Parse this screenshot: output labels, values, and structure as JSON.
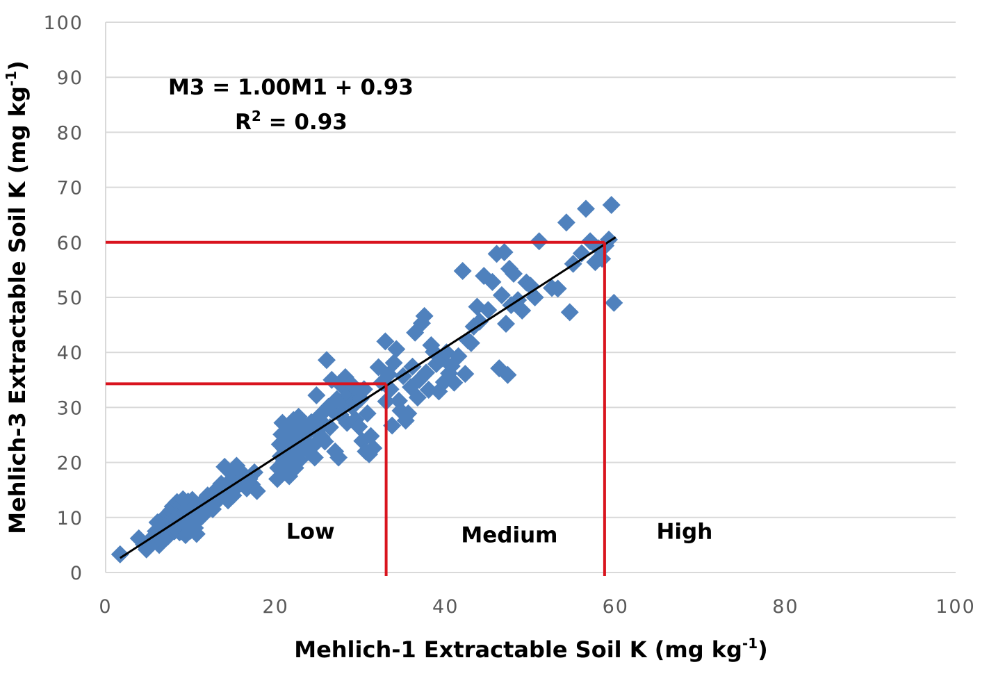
{
  "chart_data": {
    "type": "scatter",
    "xlabel": "Mehlich-1 Extractable Soil K (mg kg",
    "xlabel_sup": "-1",
    "xlabel_end": ")",
    "ylabel": "Mehlich-3 Extractable Soil K (mg kg",
    "ylabel_sup": "-1",
    "ylabel_end": ")",
    "xlim": [
      0,
      100
    ],
    "ylim": [
      0,
      100
    ],
    "xticks": [
      0,
      20,
      40,
      60,
      80,
      100
    ],
    "yticks": [
      0,
      10,
      20,
      30,
      40,
      50,
      60,
      70,
      80,
      90,
      100
    ],
    "grid": "horizontal",
    "marker": "diamond",
    "marker_color": "#4F81BD",
    "trendline": {
      "slope": 1.0,
      "intercept": 0.93,
      "x_range": [
        1.7,
        60
      ],
      "color": "#000000"
    },
    "equation_line1": "M3 = 1.00M1 + 0.93",
    "equation_line2_base": "R",
    "equation_line2_sup": "2",
    "equation_line2_rest": " = 0.93",
    "thresholds": {
      "color": "#D9141E",
      "low": {
        "x": 33,
        "y": 34.3
      },
      "high": {
        "x": 58.7,
        "y": 60
      }
    },
    "regions": [
      {
        "label": "Low",
        "x": 24.1,
        "y": 7.5
      },
      {
        "label": "Medium",
        "x": 47.5,
        "y": 6.9
      },
      {
        "label": "High",
        "x": 68.1,
        "y": 7.5
      }
    ],
    "points": [
      [
        1.7,
        3.3
      ],
      [
        3.9,
        6.2
      ],
      [
        4.5,
        5.1
      ],
      [
        4.8,
        4.2
      ],
      [
        5.0,
        4.7
      ],
      [
        5.4,
        5.5
      ],
      [
        5.6,
        6.5
      ],
      [
        5.9,
        7.5
      ],
      [
        6.1,
        9.1
      ],
      [
        6.3,
        5.0
      ],
      [
        6.5,
        6.0
      ],
      [
        6.6,
        8.0
      ],
      [
        6.8,
        9.5
      ],
      [
        6.9,
        10.0
      ],
      [
        7.0,
        7.2
      ],
      [
        7.2,
        8.7
      ],
      [
        7.3,
        6.5
      ],
      [
        7.4,
        10.5
      ],
      [
        7.5,
        9.3
      ],
      [
        7.7,
        11.3
      ],
      [
        7.8,
        8.2
      ],
      [
        7.9,
        12.0
      ],
      [
        8.0,
        10.8
      ],
      [
        8.1,
        7.5
      ],
      [
        8.2,
        9.8
      ],
      [
        8.3,
        11.8
      ],
      [
        8.4,
        12.8
      ],
      [
        8.5,
        8.8
      ],
      [
        8.6,
        10.4
      ],
      [
        8.7,
        7.3
      ],
      [
        8.8,
        11.1
      ],
      [
        8.9,
        9.6
      ],
      [
        9.0,
        12.5
      ],
      [
        9.1,
        13.3
      ],
      [
        9.2,
        8.0
      ],
      [
        9.3,
        10.9
      ],
      [
        9.4,
        6.8
      ],
      [
        9.5,
        9.3
      ],
      [
        9.6,
        11.6
      ],
      [
        9.7,
        12.9
      ],
      [
        9.8,
        8.5
      ],
      [
        9.9,
        10.1
      ],
      [
        10.0,
        7.6
      ],
      [
        10.1,
        11.9
      ],
      [
        10.2,
        13.2
      ],
      [
        10.3,
        9.0
      ],
      [
        10.4,
        10.7
      ],
      [
        10.5,
        8.1
      ],
      [
        10.6,
        12.2
      ],
      [
        10.7,
        7.0
      ],
      [
        10.8,
        11.4
      ],
      [
        11.0,
        9.7
      ],
      [
        11.2,
        12.6
      ],
      [
        11.4,
        10.3
      ],
      [
        11.6,
        13.0
      ],
      [
        11.8,
        11.0
      ],
      [
        12.0,
        14.0
      ],
      [
        12.2,
        12.3
      ],
      [
        12.4,
        13.6
      ],
      [
        12.6,
        11.5
      ],
      [
        12.8,
        14.7
      ],
      [
        13.0,
        12.8
      ],
      [
        13.2,
        15.2
      ],
      [
        13.4,
        13.9
      ],
      [
        13.6,
        16.1
      ],
      [
        13.8,
        14.4
      ],
      [
        14.0,
        19.2
      ],
      [
        14.2,
        15.5
      ],
      [
        14.4,
        13.1
      ],
      [
        14.6,
        16.6
      ],
      [
        14.8,
        18.0
      ],
      [
        15.0,
        14.0
      ],
      [
        15.2,
        17.1
      ],
      [
        15.4,
        19.4
      ],
      [
        15.6,
        15.8
      ],
      [
        15.8,
        18.5
      ],
      [
        16.0,
        16.4
      ],
      [
        16.3,
        17.6
      ],
      [
        16.6,
        15.3
      ],
      [
        16.9,
        17.0
      ],
      [
        17.2,
        16.0
      ],
      [
        17.5,
        18.2
      ],
      [
        17.8,
        14.8
      ],
      [
        20.2,
        17.0
      ],
      [
        20.3,
        19.0
      ],
      [
        20.5,
        23.3
      ],
      [
        20.6,
        21.1
      ],
      [
        20.7,
        25.1
      ],
      [
        20.8,
        27.2
      ],
      [
        20.9,
        18.1
      ],
      [
        21.0,
        20.2
      ],
      [
        21.1,
        22.3
      ],
      [
        21.2,
        24.2
      ],
      [
        21.3,
        19.6
      ],
      [
        21.4,
        26.0
      ],
      [
        21.5,
        21.6
      ],
      [
        21.6,
        17.5
      ],
      [
        21.7,
        23.1
      ],
      [
        21.8,
        25.5
      ],
      [
        21.9,
        20.8
      ],
      [
        22.0,
        22.8
      ],
      [
        22.1,
        27.7
      ],
      [
        22.2,
        24.7
      ],
      [
        22.3,
        19.0
      ],
      [
        22.4,
        21.9
      ],
      [
        22.5,
        26.4
      ],
      [
        22.6,
        23.6
      ],
      [
        22.7,
        28.3
      ],
      [
        22.8,
        20.4
      ],
      [
        22.9,
        25.1
      ],
      [
        23.0,
        22.3
      ],
      [
        23.2,
        27.0
      ],
      [
        23.4,
        24.0
      ],
      [
        23.6,
        26.1
      ],
      [
        23.8,
        25.4
      ],
      [
        24.0,
        21.8
      ],
      [
        24.2,
        27.3
      ],
      [
        24.4,
        23.0
      ],
      [
        24.6,
        20.9
      ],
      [
        24.8,
        32.2
      ],
      [
        25.0,
        25.9
      ],
      [
        25.2,
        28.5
      ],
      [
        25.4,
        24.6
      ],
      [
        25.6,
        27.1
      ],
      [
        25.8,
        23.8
      ],
      [
        26.0,
        38.6
      ],
      [
        26.2,
        30.1
      ],
      [
        26.4,
        26.4
      ],
      [
        26.6,
        35.0
      ],
      [
        26.8,
        29.2
      ],
      [
        27.0,
        22.0
      ],
      [
        27.2,
        31.5
      ],
      [
        27.4,
        20.9
      ],
      [
        27.6,
        28.7
      ],
      [
        27.8,
        33.9
      ],
      [
        28.0,
        30.6
      ],
      [
        28.2,
        35.5
      ],
      [
        28.4,
        27.2
      ],
      [
        28.6,
        32.4
      ],
      [
        28.8,
        34.4
      ],
      [
        29.0,
        30.1
      ],
      [
        29.2,
        31.0
      ],
      [
        29.4,
        27.8
      ],
      [
        29.6,
        33.1
      ],
      [
        29.8,
        26.5
      ],
      [
        30.0,
        31.6
      ],
      [
        30.2,
        23.9
      ],
      [
        30.4,
        33.3
      ],
      [
        30.6,
        22.0
      ],
      [
        30.8,
        28.9
      ],
      [
        31.0,
        21.5
      ],
      [
        31.2,
        24.8
      ],
      [
        31.5,
        22.6
      ],
      [
        32.1,
        37.3
      ],
      [
        32.5,
        34.5
      ],
      [
        32.9,
        42.0
      ],
      [
        33.0,
        31.1
      ],
      [
        33.3,
        36.0
      ],
      [
        33.5,
        33.3
      ],
      [
        33.7,
        26.7
      ],
      [
        33.9,
        38.1
      ],
      [
        34.2,
        40.6
      ],
      [
        34.5,
        31.2
      ],
      [
        34.7,
        29.4
      ],
      [
        35.0,
        35.7
      ],
      [
        35.3,
        27.6
      ],
      [
        35.6,
        28.9
      ],
      [
        35.9,
        33.7
      ],
      [
        36.1,
        37.4
      ],
      [
        36.4,
        43.6
      ],
      [
        36.7,
        31.8
      ],
      [
        36.9,
        35.0
      ],
      [
        37.2,
        45.3
      ],
      [
        37.5,
        46.6
      ],
      [
        37.7,
        36.3
      ],
      [
        38.0,
        33.2
      ],
      [
        38.3,
        41.3
      ],
      [
        38.6,
        40.1
      ],
      [
        38.9,
        37.9
      ],
      [
        39.2,
        32.9
      ],
      [
        39.5,
        38.8
      ],
      [
        39.8,
        34.6
      ],
      [
        40.1,
        40.0
      ],
      [
        40.4,
        36.2
      ],
      [
        40.7,
        37.5
      ],
      [
        41.0,
        34.5
      ],
      [
        41.5,
        39.3
      ],
      [
        42.0,
        54.8
      ],
      [
        42.3,
        36.1
      ],
      [
        42.6,
        42.2
      ],
      [
        43.0,
        41.7
      ],
      [
        43.3,
        44.7
      ],
      [
        43.7,
        48.3
      ],
      [
        44.0,
        45.6
      ],
      [
        44.5,
        53.9
      ],
      [
        45.0,
        47.7
      ],
      [
        45.5,
        52.8
      ],
      [
        46.0,
        57.9
      ],
      [
        46.3,
        37.1
      ],
      [
        46.6,
        50.4
      ],
      [
        46.9,
        58.2
      ],
      [
        47.1,
        45.2
      ],
      [
        47.3,
        35.9
      ],
      [
        47.5,
        55.2
      ],
      [
        47.7,
        48.6
      ],
      [
        48.0,
        54.3
      ],
      [
        48.5,
        49.5
      ],
      [
        49.0,
        47.6
      ],
      [
        49.5,
        52.7
      ],
      [
        50.0,
        52.1
      ],
      [
        50.5,
        50.0
      ],
      [
        51.0,
        60.2
      ],
      [
        52.5,
        51.7
      ],
      [
        53.2,
        51.6
      ],
      [
        54.2,
        63.6
      ],
      [
        54.6,
        47.3
      ],
      [
        55.0,
        56.1
      ],
      [
        56.0,
        58.0
      ],
      [
        56.5,
        66.1
      ],
      [
        57.0,
        60.2
      ],
      [
        57.6,
        56.4
      ],
      [
        58.0,
        58.9
      ],
      [
        58.4,
        57.0
      ],
      [
        58.8,
        59.4
      ],
      [
        59.2,
        60.5
      ],
      [
        59.5,
        66.8
      ],
      [
        59.8,
        49.0
      ]
    ]
  }
}
